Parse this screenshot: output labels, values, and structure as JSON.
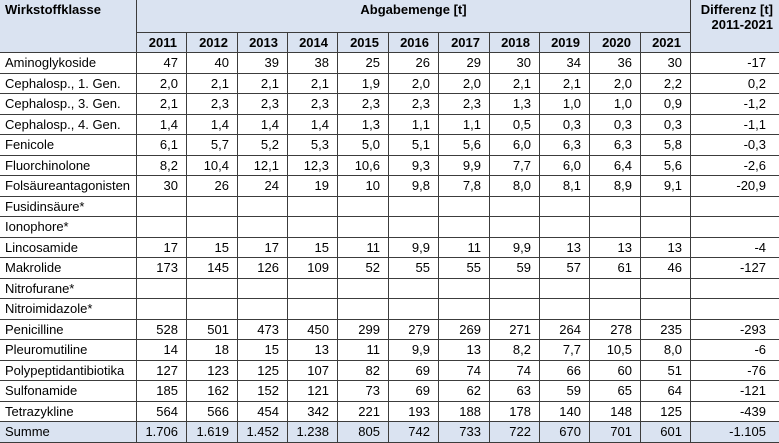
{
  "colors": {
    "header_bg": "#dae3f1",
    "grid_line": "#3c3c3c",
    "text": "#000000",
    "background": "#ffffff"
  },
  "chart_data": {
    "type": "table",
    "header": {
      "row_label": "Wirkstoffklasse",
      "value_group": "Abgabemenge [t]",
      "difference_label": "Differenz [t]",
      "difference_period": "2011-2021"
    },
    "years": [
      "2011",
      "2012",
      "2013",
      "2014",
      "2015",
      "2016",
      "2017",
      "2018",
      "2019",
      "2020",
      "2021"
    ],
    "rows": [
      {
        "label": "Aminoglykoside",
        "values": [
          "47",
          "40",
          "39",
          "38",
          "25",
          "26",
          "29",
          "30",
          "34",
          "36",
          "30"
        ],
        "difference": "-17"
      },
      {
        "label": "Cephalosp., 1. Gen.",
        "values": [
          "2,0",
          "2,1",
          "2,1",
          "2,1",
          "1,9",
          "2,0",
          "2,0",
          "2,1",
          "2,1",
          "2,0",
          "2,2"
        ],
        "difference": "0,2"
      },
      {
        "label": "Cephalosp., 3. Gen.",
        "values": [
          "2,1",
          "2,3",
          "2,3",
          "2,3",
          "2,3",
          "2,3",
          "2,3",
          "1,3",
          "1,0",
          "1,0",
          "0,9"
        ],
        "difference": "-1,2"
      },
      {
        "label": "Cephalosp., 4. Gen.",
        "values": [
          "1,4",
          "1,4",
          "1,4",
          "1,4",
          "1,3",
          "1,1",
          "1,1",
          "0,5",
          "0,3",
          "0,3",
          "0,3"
        ],
        "difference": "-1,1"
      },
      {
        "label": "Fenicole",
        "values": [
          "6,1",
          "5,7",
          "5,2",
          "5,3",
          "5,0",
          "5,1",
          "5,6",
          "6,0",
          "6,3",
          "6,3",
          "5,8"
        ],
        "difference": "-0,3"
      },
      {
        "label": "Fluorchinolone",
        "values": [
          "8,2",
          "10,4",
          "12,1",
          "12,3",
          "10,6",
          "9,3",
          "9,9",
          "7,7",
          "6,0",
          "6,4",
          "5,6"
        ],
        "difference": "-2,6"
      },
      {
        "label": "Folsäureantagonisten",
        "values": [
          "30",
          "26",
          "24",
          "19",
          "10",
          "9,8",
          "7,8",
          "8,0",
          "8,1",
          "8,9",
          "9,1"
        ],
        "difference": "-20,9"
      },
      {
        "label": "Fusidinsäure*",
        "values": []
      },
      {
        "label": "Ionophore*",
        "values": []
      },
      {
        "label": "Lincosamide",
        "values": [
          "17",
          "15",
          "17",
          "15",
          "11",
          "9,9",
          "11",
          "9,9",
          "13",
          "13",
          "13"
        ],
        "difference": "-4"
      },
      {
        "label": "Makrolide",
        "values": [
          "173",
          "145",
          "126",
          "109",
          "52",
          "55",
          "55",
          "59",
          "57",
          "61",
          "46"
        ],
        "difference": "-127"
      },
      {
        "label": "Nitrofurane*",
        "values": []
      },
      {
        "label": "Nitroimidazole*",
        "values": []
      },
      {
        "label": "Penicilline",
        "values": [
          "528",
          "501",
          "473",
          "450",
          "299",
          "279",
          "269",
          "271",
          "264",
          "278",
          "235"
        ],
        "difference": "-293"
      },
      {
        "label": "Pleuromutiline",
        "values": [
          "14",
          "18",
          "15",
          "13",
          "11",
          "9,9",
          "13",
          "8,2",
          "7,7",
          "10,5",
          "8,0"
        ],
        "difference": "-6"
      },
      {
        "label": "Polypeptidantibiotika",
        "values": [
          "127",
          "123",
          "125",
          "107",
          "82",
          "69",
          "74",
          "74",
          "66",
          "60",
          "51"
        ],
        "difference": "-76"
      },
      {
        "label": "Sulfonamide",
        "values": [
          "185",
          "162",
          "152",
          "121",
          "73",
          "69",
          "62",
          "63",
          "59",
          "65",
          "64"
        ],
        "difference": "-121"
      },
      {
        "label": "Tetrazykline",
        "values": [
          "564",
          "566",
          "454",
          "342",
          "221",
          "193",
          "188",
          "178",
          "140",
          "148",
          "125"
        ],
        "difference": "-439"
      }
    ],
    "total": {
      "label": "Summe",
      "values": [
        "1.706",
        "1.619",
        "1.452",
        "1.238",
        "805",
        "742",
        "733",
        "722",
        "670",
        "701",
        "601"
      ],
      "difference": "-1.105"
    }
  }
}
